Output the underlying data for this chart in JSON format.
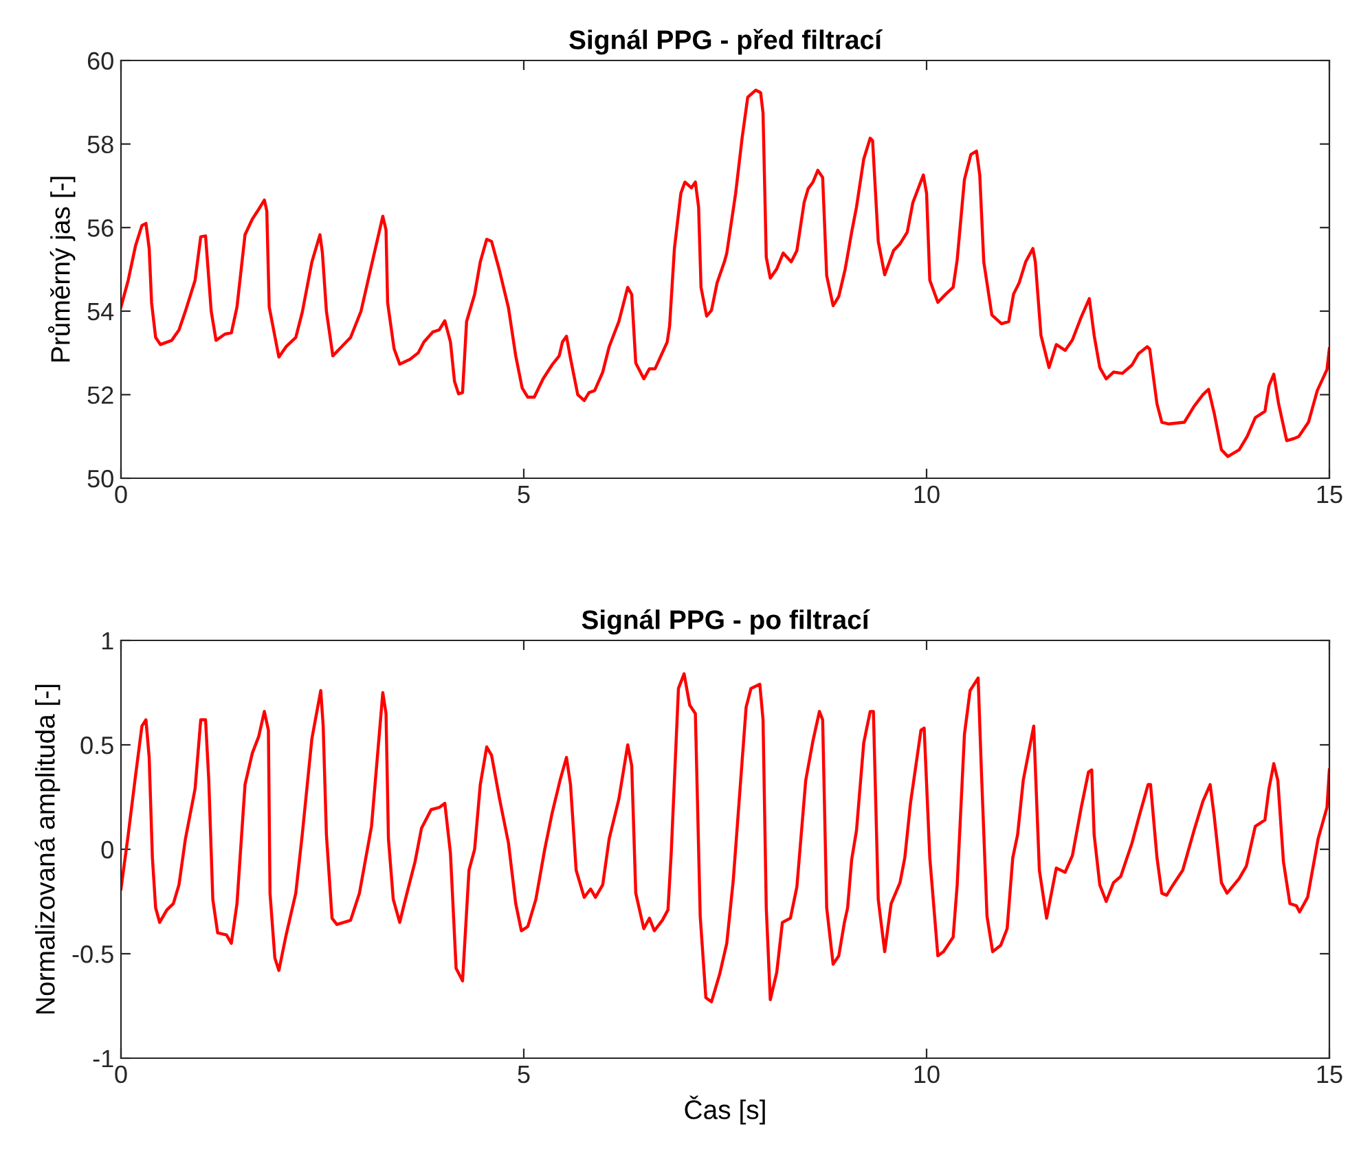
{
  "chart_data": [
    {
      "type": "line",
      "title": "Signál PPG - před filtrací",
      "ylabel": "Průměrný jas [-]",
      "xlim": [
        0,
        15
      ],
      "xticks": [
        0,
        5,
        10,
        15
      ],
      "ylim": [
        50,
        60
      ],
      "yticks": [
        50,
        52,
        54,
        56,
        58,
        60
      ],
      "grid": false,
      "marker": "none",
      "line_style": "solid",
      "series": [
        {
          "color": "#ff0000",
          "x": [
            0,
            0.09,
            0.18,
            0.26,
            0.31,
            0.35,
            0.38,
            0.43,
            0.49,
            0.63,
            0.72,
            0.8,
            0.92,
            0.99,
            1.05,
            1.12,
            1.18,
            1.29,
            1.37,
            1.44,
            1.54,
            1.63,
            1.71,
            1.78,
            1.81,
            1.84,
            1.96,
            2.05,
            2.17,
            2.25,
            2.37,
            2.47,
            2.5,
            2.55,
            2.63,
            2.74,
            2.85,
            2.98,
            3.11,
            3.25,
            3.29,
            3.31,
            3.39,
            3.46,
            3.59,
            3.69,
            3.76,
            3.87,
            3.95,
            4.02,
            4.09,
            4.14,
            4.19,
            4.24,
            4.29,
            4.39,
            4.46,
            4.54,
            4.6,
            4.7,
            4.81,
            4.9,
            4.98,
            5.05,
            5.13,
            5.24,
            5.35,
            5.44,
            5.48,
            5.53,
            5.58,
            5.67,
            5.75,
            5.81,
            5.88,
            5.98,
            6.06,
            6.18,
            6.29,
            6.34,
            6.39,
            6.49,
            6.56,
            6.63,
            6.78,
            6.81,
            6.87,
            6.95,
            7.0,
            7.08,
            7.13,
            7.17,
            7.2,
            7.27,
            7.33,
            7.4,
            7.49,
            7.52,
            7.63,
            7.71,
            7.78,
            7.88,
            7.94,
            7.97,
            8.01,
            8.06,
            8.14,
            8.22,
            8.32,
            8.39,
            8.48,
            8.53,
            8.59,
            8.65,
            8.71,
            8.76,
            8.84,
            8.91,
            8.99,
            9.07,
            9.13,
            9.22,
            9.3,
            9.33,
            9.4,
            9.48,
            9.59,
            9.67,
            9.76,
            9.83,
            9.96,
            10.0,
            10.04,
            10.14,
            10.24,
            10.33,
            10.38,
            10.47,
            10.55,
            10.62,
            10.66,
            10.71,
            10.81,
            10.93,
            11.02,
            11.08,
            11.15,
            11.23,
            11.32,
            11.35,
            11.42,
            11.52,
            11.61,
            11.72,
            11.81,
            11.92,
            12.02,
            12.08,
            12.15,
            12.23,
            12.32,
            12.43,
            12.55,
            12.63,
            12.74,
            12.77,
            12.86,
            12.92,
            13.0,
            13.2,
            13.32,
            13.43,
            13.5,
            13.57,
            13.66,
            13.74,
            13.88,
            13.98,
            14.08,
            14.2,
            14.25,
            14.31,
            14.37,
            14.47,
            14.56,
            14.62,
            14.74,
            14.85,
            14.97,
            15.0
          ],
          "values": [
            54.1,
            54.74,
            55.56,
            56.05,
            56.1,
            55.5,
            54.2,
            53.37,
            53.2,
            53.3,
            53.55,
            54.0,
            54.74,
            55.78,
            55.8,
            54.0,
            53.3,
            53.45,
            53.48,
            54.1,
            55.83,
            56.2,
            56.44,
            56.66,
            56.4,
            54.1,
            52.9,
            53.15,
            53.37,
            53.97,
            55.18,
            55.83,
            55.4,
            54.0,
            52.93,
            53.15,
            53.37,
            54.0,
            55.1,
            56.27,
            55.94,
            54.2,
            53.1,
            52.73,
            52.85,
            53.0,
            53.26,
            53.5,
            53.55,
            53.77,
            53.26,
            52.32,
            52.02,
            52.05,
            53.75,
            54.4,
            55.18,
            55.72,
            55.67,
            54.96,
            54.08,
            52.93,
            52.16,
            51.94,
            51.94,
            52.38,
            52.71,
            52.93,
            53.26,
            53.4,
            52.87,
            52.0,
            51.86,
            52.05,
            52.1,
            52.54,
            53.15,
            53.75,
            54.57,
            54.4,
            52.76,
            52.38,
            52.62,
            52.62,
            53.26,
            53.64,
            55.5,
            56.82,
            57.09,
            56.95,
            57.09,
            56.49,
            54.57,
            53.88,
            54.02,
            54.68,
            55.18,
            55.39,
            56.82,
            58.14,
            59.12,
            59.29,
            59.23,
            58.74,
            55.29,
            54.79,
            55.01,
            55.39,
            55.18,
            55.45,
            56.6,
            56.93,
            57.09,
            57.37,
            57.2,
            54.85,
            54.13,
            54.35,
            55.01,
            55.89,
            56.49,
            57.64,
            58.14,
            58.08,
            55.67,
            54.87,
            55.45,
            55.61,
            55.89,
            56.6,
            57.26,
            56.82,
            54.74,
            54.21,
            54.41,
            54.57,
            55.23,
            57.15,
            57.75,
            57.83,
            57.26,
            55.18,
            53.91,
            53.7,
            53.75,
            54.41,
            54.68,
            55.18,
            55.5,
            55.18,
            53.42,
            52.65,
            53.2,
            53.06,
            53.31,
            53.86,
            54.3,
            53.42,
            52.65,
            52.38,
            52.54,
            52.51,
            52.71,
            52.98,
            53.15,
            53.09,
            51.78,
            51.34,
            51.3,
            51.34,
            51.72,
            52.0,
            52.13,
            51.56,
            50.68,
            50.52,
            50.68,
            51.0,
            51.45,
            51.6,
            52.21,
            52.49,
            51.78,
            50.9,
            50.95,
            51.0,
            51.34,
            52.1,
            52.6,
            53.1
          ]
        }
      ]
    },
    {
      "type": "line",
      "title": "Signál PPG - po filtrací",
      "xlabel": "Čas [s]",
      "ylabel": "Normalizovaná amplituda [-]",
      "xlim": [
        0,
        15
      ],
      "xticks": [
        0,
        5,
        10,
        15
      ],
      "ylim": [
        -1,
        1
      ],
      "yticks": [
        -1,
        -0.5,
        0,
        0.5,
        1
      ],
      "grid": false,
      "marker": "none",
      "line_style": "solid",
      "series": [
        {
          "color": "#ff0000",
          "x": [
            0,
            0.09,
            0.18,
            0.26,
            0.31,
            0.35,
            0.39,
            0.43,
            0.48,
            0.57,
            0.65,
            0.72,
            0.8,
            0.92,
            0.99,
            1.05,
            1.09,
            1.14,
            1.2,
            1.31,
            1.37,
            1.44,
            1.54,
            1.63,
            1.71,
            1.78,
            1.83,
            1.85,
            1.91,
            1.96,
            2.05,
            2.17,
            2.25,
            2.37,
            2.48,
            2.51,
            2.55,
            2.62,
            2.68,
            2.85,
            2.96,
            3.11,
            3.25,
            3.29,
            3.32,
            3.38,
            3.46,
            3.53,
            3.65,
            3.73,
            3.85,
            3.95,
            4.02,
            4.09,
            4.16,
            4.24,
            4.32,
            4.39,
            4.46,
            4.54,
            4.6,
            4.7,
            4.81,
            4.9,
            4.97,
            5.05,
            5.15,
            5.26,
            5.35,
            5.45,
            5.53,
            5.58,
            5.65,
            5.75,
            5.83,
            5.89,
            5.98,
            6.06,
            6.18,
            6.29,
            6.34,
            6.39,
            6.49,
            6.56,
            6.62,
            6.72,
            6.79,
            6.83,
            6.92,
            6.99,
            7.06,
            7.13,
            7.19,
            7.26,
            7.33,
            7.43,
            7.52,
            7.6,
            7.65,
            7.76,
            7.82,
            7.93,
            7.97,
            8.01,
            8.06,
            8.14,
            8.21,
            8.31,
            8.39,
            8.5,
            8.59,
            8.67,
            8.71,
            8.76,
            8.84,
            8.91,
            8.98,
            9.02,
            9.07,
            9.13,
            9.22,
            9.3,
            9.34,
            9.4,
            9.48,
            9.56,
            9.67,
            9.73,
            9.8,
            9.93,
            9.97,
            10.04,
            10.14,
            10.21,
            10.33,
            10.38,
            10.47,
            10.54,
            10.64,
            10.68,
            10.75,
            10.82,
            10.92,
            11.0,
            11.07,
            11.13,
            11.2,
            11.26,
            11.33,
            11.4,
            11.49,
            11.61,
            11.72,
            11.81,
            11.92,
            12.01,
            12.05,
            12.08,
            12.15,
            12.23,
            12.32,
            12.41,
            12.55,
            12.64,
            12.75,
            12.78,
            12.86,
            12.92,
            12.98,
            13.06,
            13.18,
            13.32,
            13.43,
            13.52,
            13.57,
            13.66,
            13.73,
            13.88,
            13.97,
            14.08,
            14.2,
            14.25,
            14.31,
            14.36,
            14.43,
            14.51,
            14.59,
            14.63,
            14.73,
            14.86,
            14.97,
            15.0
          ],
          "values": [
            -0.19,
            0.07,
            0.35,
            0.59,
            0.62,
            0.44,
            -0.04,
            -0.28,
            -0.35,
            -0.29,
            -0.26,
            -0.17,
            0.05,
            0.29,
            0.62,
            0.62,
            0.33,
            -0.24,
            -0.4,
            -0.41,
            -0.45,
            -0.26,
            0.31,
            0.46,
            0.54,
            0.66,
            0.57,
            -0.21,
            -0.52,
            -0.58,
            -0.41,
            -0.21,
            0.07,
            0.53,
            0.76,
            0.59,
            0.07,
            -0.33,
            -0.36,
            -0.34,
            -0.21,
            0.11,
            0.75,
            0.65,
            0.05,
            -0.24,
            -0.35,
            -0.24,
            -0.06,
            0.1,
            0.19,
            0.2,
            0.22,
            -0.02,
            -0.57,
            -0.63,
            -0.1,
            0.0,
            0.31,
            0.49,
            0.45,
            0.24,
            0.03,
            -0.26,
            -0.39,
            -0.37,
            -0.24,
            0.0,
            0.17,
            0.33,
            0.44,
            0.31,
            -0.1,
            -0.23,
            -0.19,
            -0.23,
            -0.17,
            0.05,
            0.24,
            0.5,
            0.4,
            -0.21,
            -0.38,
            -0.33,
            -0.39,
            -0.34,
            -0.29,
            -0.02,
            0.77,
            0.84,
            0.69,
            0.65,
            -0.32,
            -0.71,
            -0.73,
            -0.6,
            -0.45,
            -0.15,
            0.11,
            0.68,
            0.77,
            0.79,
            0.62,
            -0.28,
            -0.72,
            -0.59,
            -0.35,
            -0.33,
            -0.18,
            0.33,
            0.52,
            0.66,
            0.62,
            -0.28,
            -0.55,
            -0.51,
            -0.35,
            -0.28,
            -0.05,
            0.09,
            0.51,
            0.66,
            0.66,
            -0.24,
            -0.49,
            -0.26,
            -0.16,
            -0.04,
            0.22,
            0.57,
            0.58,
            -0.04,
            -0.51,
            -0.49,
            -0.42,
            -0.17,
            0.55,
            0.76,
            0.82,
            0.38,
            -0.32,
            -0.49,
            -0.46,
            -0.38,
            -0.04,
            0.07,
            0.33,
            0.45,
            0.59,
            -0.1,
            -0.33,
            -0.09,
            -0.11,
            -0.03,
            0.2,
            0.37,
            0.38,
            0.07,
            -0.17,
            -0.25,
            -0.16,
            -0.13,
            0.03,
            0.16,
            0.31,
            0.31,
            -0.04,
            -0.21,
            -0.22,
            -0.17,
            -0.1,
            0.09,
            0.23,
            0.31,
            0.16,
            -0.16,
            -0.21,
            -0.14,
            -0.08,
            0.11,
            0.14,
            0.29,
            0.41,
            0.33,
            -0.06,
            -0.26,
            -0.27,
            -0.3,
            -0.23,
            0.05,
            0.2,
            0.38
          ]
        }
      ]
    }
  ]
}
